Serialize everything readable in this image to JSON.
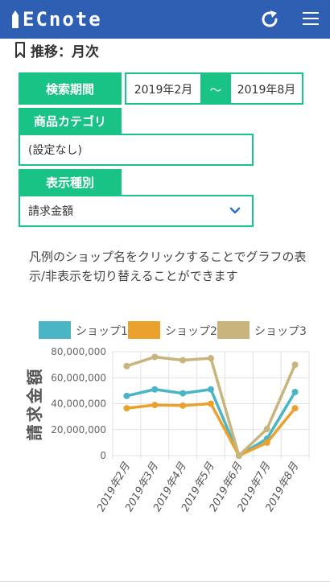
{
  "app": {
    "logo_text": "ECnote"
  },
  "header": {
    "reload_icon": "reload-icon",
    "menu_icon": "hamburger-menu-icon"
  },
  "page": {
    "title": "推移：月次",
    "title_icon": "bookmark-icon"
  },
  "filters": {
    "period_label": "検索期間",
    "period_start": "2019年2月",
    "period_separator": "〜",
    "period_end": "2019年8月",
    "category_label": "商品カテゴリ",
    "category_value": "(設定なし)",
    "display_type_label": "表示種別",
    "display_type_value": "請求金額"
  },
  "notice": "凡例のショップ名をクリックすることでグラフの表示/非表示を切り替えることができます",
  "colors": {
    "accent": "#19c285",
    "header": "#2f5fb3"
  },
  "chart_data": {
    "type": "line",
    "categories": [
      "2019年2月",
      "2019年3月",
      "2019年4月",
      "2019年5月",
      "2019年6月",
      "2019年7月",
      "2019年8月"
    ],
    "series": [
      {
        "name": "ショップ1",
        "color": "#4ab5c4",
        "values": [
          46000000,
          51000000,
          48000000,
          51000000,
          0,
          13000000,
          49000000
        ]
      },
      {
        "name": "ショップ2",
        "color": "#eba12e",
        "values": [
          36500000,
          39000000,
          38500000,
          40000000,
          0,
          10000000,
          36500000
        ]
      },
      {
        "name": "ショップ3",
        "color": "#c8b47c",
        "values": [
          69000000,
          76000000,
          73500000,
          75000000,
          0,
          20500000,
          70000000
        ]
      }
    ],
    "ylabel": "請求金額",
    "ylim": [
      0,
      80000000
    ],
    "yticks": [
      "0",
      "20,000,000",
      "40,000,000",
      "60,000,000",
      "80,000,000"
    ],
    "legend_position": "top",
    "grid": true
  }
}
